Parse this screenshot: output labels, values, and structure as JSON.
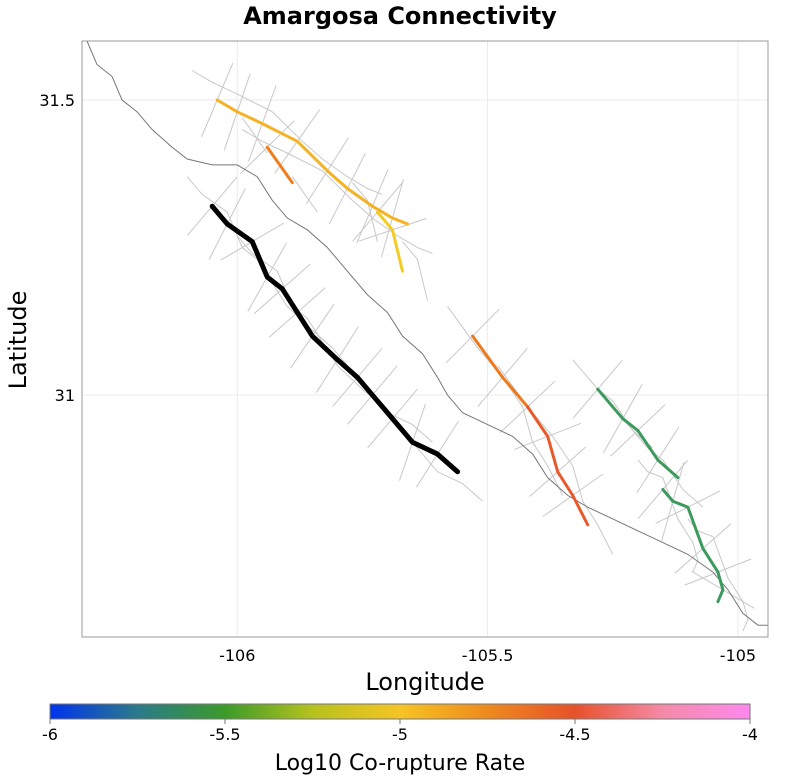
{
  "chart_data": {
    "type": "map",
    "title": "Amargosa Connectivity",
    "xlabel": "Longitude",
    "ylabel": "Latitude",
    "xlim": [
      -106.31,
      -104.94
    ],
    "ylim": [
      30.59,
      31.6
    ],
    "xticks": [
      {
        "value": -106,
        "label": "-106"
      },
      {
        "value": -105.5,
        "label": "-105.5"
      },
      {
        "value": -105,
        "label": "-105"
      }
    ],
    "yticks": [
      {
        "value": 31.5,
        "label": "31.5"
      },
      {
        "value": 31,
        "label": "31"
      }
    ],
    "grid": true,
    "colorbar": {
      "label": "Log10 Co-rupture Rate",
      "range": [
        -6,
        -4
      ],
      "ticks": [
        {
          "value": -6,
          "label": "-6"
        },
        {
          "value": -5.5,
          "label": "-5.5"
        },
        {
          "value": -5,
          "label": "-5"
        },
        {
          "value": -4.5,
          "label": "-4.5"
        },
        {
          "value": -4,
          "label": "-4"
        }
      ],
      "colors": [
        "#0033ee",
        "#2b7a8a",
        "#3c9a2a",
        "#b6c21e",
        "#f6c424",
        "#ee8a1e",
        "#e8512a",
        "#f58aa8",
        "#ff88ee"
      ]
    },
    "boundary": [
      [
        -106.3,
        31.6
      ],
      [
        -106.28,
        31.56
      ],
      [
        -106.25,
        31.54
      ],
      [
        -106.23,
        31.5
      ],
      [
        -106.2,
        31.48
      ],
      [
        -106.17,
        31.45
      ],
      [
        -106.13,
        31.42
      ],
      [
        -106.1,
        31.4
      ],
      [
        -106.05,
        31.39
      ],
      [
        -106.0,
        31.39
      ],
      [
        -105.96,
        31.37
      ],
      [
        -105.93,
        31.33
      ],
      [
        -105.9,
        31.3
      ],
      [
        -105.86,
        31.28
      ],
      [
        -105.82,
        31.25
      ],
      [
        -105.78,
        31.21
      ],
      [
        -105.74,
        31.17
      ],
      [
        -105.7,
        31.14
      ],
      [
        -105.67,
        31.1
      ],
      [
        -105.63,
        31.07
      ],
      [
        -105.6,
        31.03
      ],
      [
        -105.58,
        31.0
      ],
      [
        -105.55,
        30.97
      ],
      [
        -105.5,
        30.95
      ],
      [
        -105.45,
        30.93
      ],
      [
        -105.41,
        30.9
      ],
      [
        -105.38,
        30.86
      ],
      [
        -105.34,
        30.83
      ],
      [
        -105.3,
        30.81
      ],
      [
        -105.25,
        30.79
      ],
      [
        -105.2,
        30.77
      ],
      [
        -105.15,
        30.75
      ],
      [
        -105.1,
        30.73
      ],
      [
        -105.05,
        30.7
      ],
      [
        -105.02,
        30.67
      ],
      [
        -104.99,
        30.63
      ],
      [
        -104.96,
        30.61
      ],
      [
        -104.94,
        30.61
      ]
    ],
    "sections": [
      {
        "name": "",
        "log10_rate": null,
        "color": "#000000",
        "points": [
          [
            -106.05,
            31.32
          ],
          [
            -106.02,
            31.29
          ],
          [
            -105.97,
            31.26
          ],
          [
            -105.94,
            31.2
          ],
          [
            -105.91,
            31.18
          ],
          [
            -105.88,
            31.14
          ],
          [
            -105.85,
            31.1
          ],
          [
            -105.8,
            31.06
          ],
          [
            -105.76,
            31.03
          ],
          [
            -105.73,
            31.0
          ],
          [
            -105.69,
            30.96
          ],
          [
            -105.65,
            30.92
          ],
          [
            -105.6,
            30.9
          ],
          [
            -105.56,
            30.87
          ]
        ]
      },
      {
        "name": "",
        "log10_rate": -4.9,
        "color": "#f4b224",
        "points": [
          [
            -106.04,
            31.5
          ],
          [
            -106.0,
            31.48
          ],
          [
            -105.95,
            31.46
          ],
          [
            -105.88,
            31.43
          ],
          [
            -105.82,
            31.38
          ],
          [
            -105.78,
            31.35
          ],
          [
            -105.73,
            31.32
          ],
          [
            -105.69,
            31.3
          ],
          [
            -105.66,
            31.29
          ]
        ]
      },
      {
        "name": "",
        "log10_rate": -4.6,
        "color": "#ee7e1e",
        "points": [
          [
            -105.94,
            31.42
          ],
          [
            -105.89,
            31.36
          ]
        ]
      },
      {
        "name": "",
        "log10_rate": -5.0,
        "color": "#f2cc24",
        "points": [
          [
            -105.72,
            31.31
          ],
          [
            -105.69,
            31.28
          ],
          [
            -105.67,
            31.21
          ]
        ]
      },
      {
        "name": "",
        "log10_rate": -4.6,
        "color": "#ee7a1e",
        "points": [
          [
            -105.53,
            31.1
          ],
          [
            -105.47,
            31.03
          ],
          [
            -105.42,
            30.98
          ]
        ]
      },
      {
        "name": "",
        "log10_rate": -4.4,
        "color": "#e85a2a",
        "points": [
          [
            -105.42,
            30.98
          ],
          [
            -105.38,
            30.93
          ],
          [
            -105.36,
            30.87
          ],
          [
            -105.33,
            30.83
          ],
          [
            -105.3,
            30.78
          ]
        ]
      },
      {
        "name": "",
        "log10_rate": -5.4,
        "color": "#3d9a5e",
        "points": [
          [
            -105.28,
            31.01
          ],
          [
            -105.23,
            30.96
          ],
          [
            -105.2,
            30.94
          ],
          [
            -105.16,
            30.89
          ],
          [
            -105.12,
            30.86
          ]
        ]
      },
      {
        "name": "",
        "log10_rate": -5.4,
        "color": "#3d9a5e",
        "points": [
          [
            -105.15,
            30.84
          ],
          [
            -105.13,
            30.82
          ],
          [
            -105.1,
            30.81
          ],
          [
            -105.07,
            30.74
          ],
          [
            -105.04,
            30.7
          ],
          [
            -105.03,
            30.67
          ],
          [
            -105.04,
            30.65
          ]
        ]
      }
    ]
  }
}
